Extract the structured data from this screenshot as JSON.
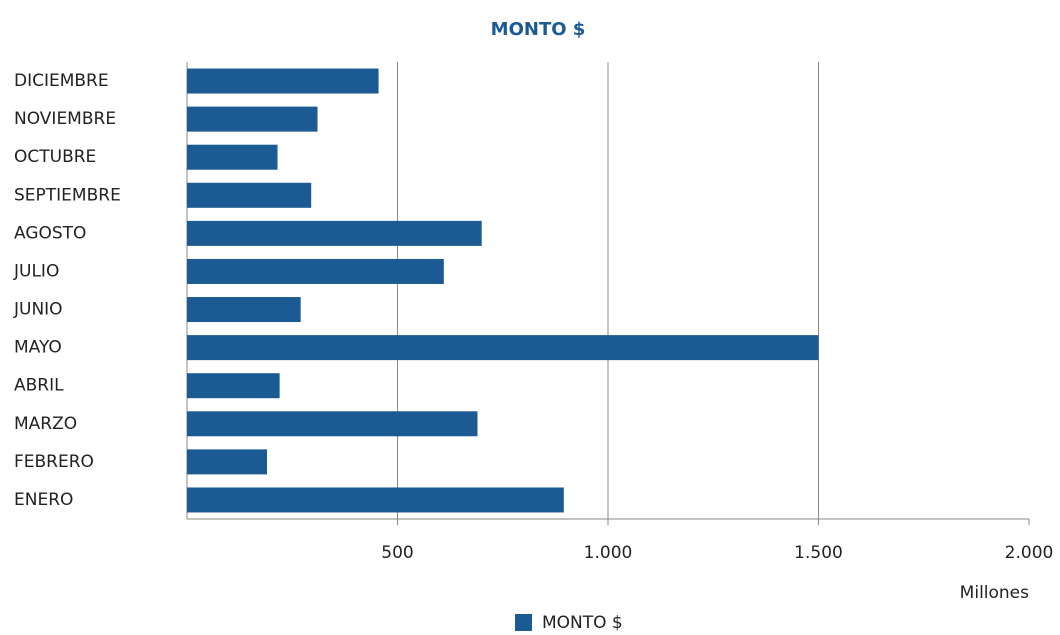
{
  "chart_data": {
    "type": "bar",
    "orientation": "horizontal",
    "title": "MONTO $",
    "categories": [
      "ENERO",
      "FEBRERO",
      "MARZO",
      "ABRIL",
      "MAYO",
      "JUNIO",
      "JULIO",
      "AGOSTO",
      "SEPTIEMBRE",
      "OCTUBRE",
      "NOVIEMBRE",
      "DICIEMBRE"
    ],
    "series": [
      {
        "name": "MONTO $",
        "color": "#1b5a93",
        "values": [
          895,
          190,
          690,
          220,
          1500,
          270,
          610,
          700,
          295,
          215,
          310,
          455
        ]
      }
    ],
    "x_label": "Millones",
    "xlim": [
      0,
      2000
    ],
    "xticks": [
      500,
      {
        "value": 1000,
        "label": "1.000"
      },
      {
        "value": 1500,
        "label": "1.500"
      },
      {
        "value": 2000,
        "label": "2.000"
      }
    ],
    "grid": true,
    "legend": "bottom"
  }
}
